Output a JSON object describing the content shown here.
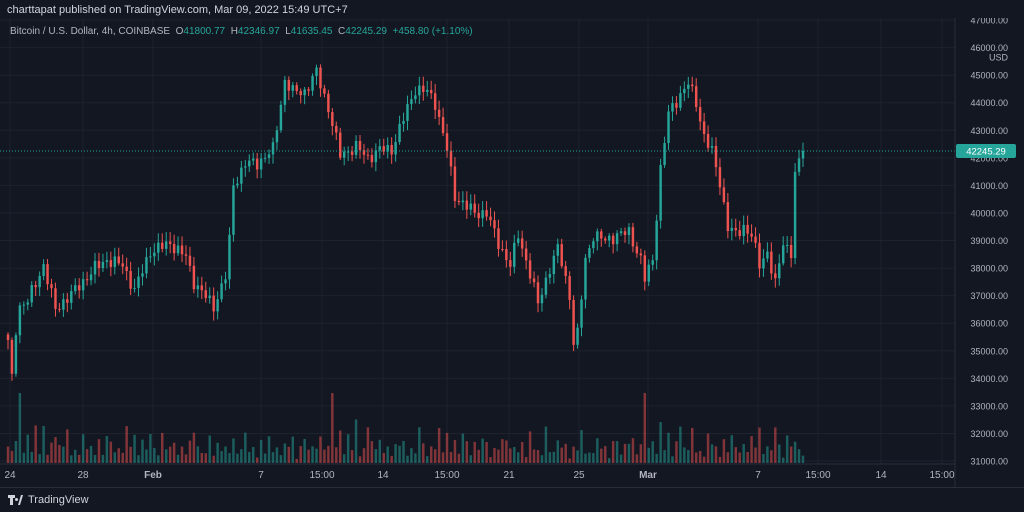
{
  "header": {
    "published": "charttapat published on TradingView.com, Mar 09, 2022 15:49 UTC+7"
  },
  "legend": {
    "symbol": "Bitcoin / U.S. Dollar, 4h, COINBASE",
    "o_label": "O",
    "o": "41800.77",
    "h_label": "H",
    "h": "42346.97",
    "l_label": "L",
    "l": "41635.45",
    "c_label": "C",
    "c": "42245.29",
    "change": "+458.80 (+1.10%)"
  },
  "footer": {
    "brand": "TradingView"
  },
  "colors": {
    "up": "#26a69a",
    "down": "#ef5350",
    "background": "#131722",
    "price_tag": "#26a69a"
  },
  "icons": {
    "brand": "tradingview-logo-icon"
  },
  "chart_data": {
    "type": "candlestick",
    "currency": "USD",
    "last_price": "42245.29",
    "ylim": [
      31000,
      47000
    ],
    "y_ticks": [
      "47000.00",
      "46000.00",
      "45000.00",
      "44000.00",
      "43000.00",
      "42000.00",
      "41000.00",
      "40000.00",
      "39000.00",
      "38000.00",
      "37000.00",
      "36000.00",
      "35000.00",
      "34000.00",
      "33000.00",
      "32000.00",
      "31000.00"
    ],
    "x_ticks": [
      "24",
      "28",
      "Feb",
      "7",
      "15:00",
      "14",
      "15:00",
      "21",
      "25",
      "Mar",
      "7",
      "15:00",
      "14",
      "15:00"
    ],
    "grid": true,
    "price_anchors": [
      [
        0,
        35300
      ],
      [
        1,
        34000
      ],
      [
        2,
        35800
      ],
      [
        3,
        36600
      ],
      [
        5,
        36800
      ],
      [
        9,
        38100
      ],
      [
        12,
        36500
      ],
      [
        17,
        37200
      ],
      [
        22,
        38000
      ],
      [
        25,
        38300
      ],
      [
        29,
        38100
      ],
      [
        32,
        37200
      ],
      [
        36,
        38600
      ],
      [
        41,
        38900
      ],
      [
        45,
        38400
      ],
      [
        47,
        37500
      ],
      [
        52,
        36600
      ],
      [
        55,
        37700
      ],
      [
        56,
        39000
      ],
      [
        57,
        41000
      ],
      [
        60,
        41800
      ],
      [
        63,
        41800
      ],
      [
        67,
        42300
      ],
      [
        70,
        44800
      ],
      [
        72,
        44400
      ],
      [
        75,
        44400
      ],
      [
        78,
        45100
      ],
      [
        81,
        43800
      ],
      [
        84,
        42100
      ],
      [
        88,
        42400
      ],
      [
        91,
        42000
      ],
      [
        94,
        42300
      ],
      [
        97,
        42300
      ],
      [
        101,
        43800
      ],
      [
        103,
        44500
      ],
      [
        106,
        44400
      ],
      [
        108,
        44000
      ],
      [
        111,
        42300
      ],
      [
        113,
        40600
      ],
      [
        118,
        40000
      ],
      [
        121,
        40000
      ],
      [
        124,
        38900
      ],
      [
        127,
        38100
      ],
      [
        129,
        39200
      ],
      [
        132,
        37800
      ],
      [
        134,
        36700
      ],
      [
        137,
        38000
      ],
      [
        139,
        38700
      ],
      [
        140,
        38200
      ],
      [
        142,
        37000
      ],
      [
        143,
        35300
      ],
      [
        144,
        35600
      ],
      [
        146,
        38300
      ],
      [
        148,
        39200
      ],
      [
        151,
        39000
      ],
      [
        154,
        39200
      ],
      [
        157,
        39300
      ],
      [
        160,
        38300
      ],
      [
        161,
        37600
      ],
      [
        163,
        38300
      ],
      [
        165,
        41600
      ],
      [
        167,
        43600
      ],
      [
        170,
        44300
      ],
      [
        172,
        44700
      ],
      [
        174,
        44000
      ],
      [
        176,
        42800
      ],
      [
        178,
        42200
      ],
      [
        180,
        41100
      ],
      [
        182,
        39500
      ],
      [
        184,
        39200
      ],
      [
        186,
        39500
      ],
      [
        188,
        39200
      ],
      [
        190,
        38100
      ],
      [
        192,
        38600
      ],
      [
        194,
        37400
      ],
      [
        196,
        38900
      ],
      [
        198,
        38600
      ],
      [
        199,
        41400
      ],
      [
        201,
        42245
      ]
    ],
    "volume_pattern": [
      1,
      0.5,
      0.8,
      3.6,
      0.6,
      1.2,
      0.4,
      1.5,
      0.5,
      1.6,
      0.3,
      0.8,
      1.4,
      0.8,
      0.6,
      1.3,
      0.4,
      0.6,
      0.3,
      1.1,
      0.7,
      0.8,
      0.3,
      0.9,
      0.4,
      1.3,
      0.8,
      0.4,
      0.7,
      0.5,
      1.4,
      0.6,
      1.3,
      0.4,
      0.9,
      0.5,
      1.3,
      0.8,
      0.3,
      1.1,
      0.6,
      0.9,
      0.8,
      0.3,
      0.7,
      0.5,
      0.9,
      1.1,
      0.7,
      0.6,
      0.4,
      1.0,
      0.3,
      1.2,
      0.5,
      0.6,
      0.4,
      1.4,
      0.4,
      0.5,
      1.2,
      0.6,
      0.7,
      0.2,
      0.9,
      0.5,
      1.2,
      0.4,
      0.6,
      0.4,
      0.9,
      0.6,
      1.0,
      0.2,
      0.8,
      0.9,
      0.5,
      0.8,
      0.7
    ]
  }
}
